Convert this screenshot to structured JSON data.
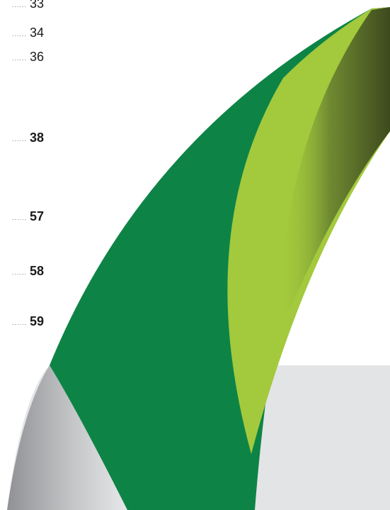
{
  "colors": {
    "dark_green": "#0d8446",
    "lime_green": "#a3c93d",
    "olive_dark": "#4e6127",
    "light_grey": "#e3e4e5",
    "mid_grey": "#9c9ea1"
  },
  "toc": {
    "leader": "......",
    "entries": [
      {
        "page": "33",
        "bold": false
      },
      {
        "page": "34",
        "bold": false
      },
      {
        "page": "36",
        "bold": false
      },
      {
        "page": "38",
        "bold": true
      },
      {
        "page": "57",
        "bold": true
      },
      {
        "page": "58",
        "bold": true
      },
      {
        "page": "59",
        "bold": true
      }
    ]
  }
}
